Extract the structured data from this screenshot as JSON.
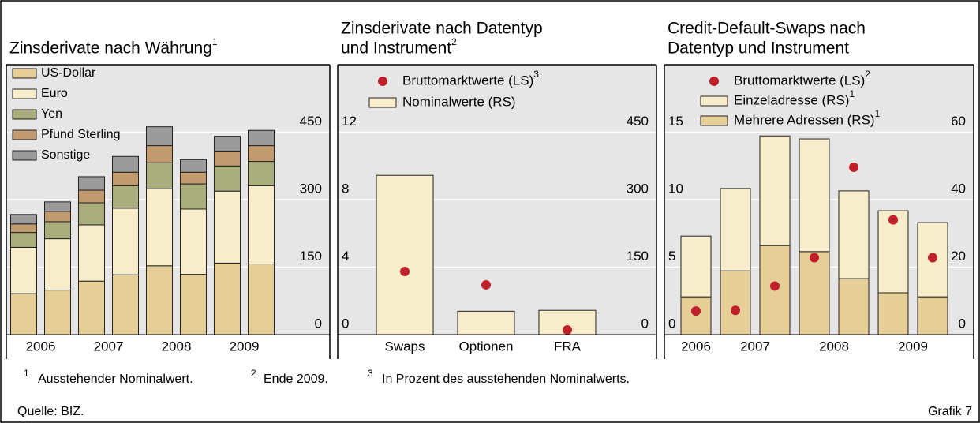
{
  "chart_data": [
    {
      "type": "bar",
      "stacked": true,
      "title": [
        "Zinsderivate nach Währung"
      ],
      "title_note": "1",
      "categories": [
        "2006",
        null,
        "2007",
        null,
        "2008",
        null,
        "2009",
        null
      ],
      "y_axis_position": "right",
      "ylim": [
        0,
        600
      ],
      "yticks": [
        0,
        150,
        300,
        450
      ],
      "grid": true,
      "series": [
        {
          "name": "US-Dollar",
          "color": "#e6cf97",
          "values": [
            91,
            99,
            119,
            133,
            153,
            134,
            159,
            157
          ]
        },
        {
          "name": "Euro",
          "color": "#f7edcb",
          "values": [
            103,
            114,
            125,
            148,
            171,
            145,
            160,
            174
          ]
        },
        {
          "name": "Yen",
          "color": "#a9ae7c",
          "values": [
            33,
            38,
            49,
            50,
            58,
            56,
            56,
            54
          ]
        },
        {
          "name": "Pfund Sterling",
          "color": "#c19b6d",
          "values": [
            19,
            23,
            28,
            30,
            38,
            26,
            33,
            35
          ]
        },
        {
          "name": "Sonstige",
          "color": "#9b9b9b",
          "values": [
            21,
            21,
            30,
            35,
            42,
            28,
            33,
            34
          ]
        }
      ]
    },
    {
      "type": "bar",
      "stacked": true,
      "title": [
        "Zinsderivate nach Datentyp",
        "und Instrument"
      ],
      "title_note": "2",
      "categories": [
        "Swaps",
        "Optionen",
        "FRA"
      ],
      "ylim": [
        0,
        16
      ],
      "yticks": [
        0,
        4,
        8,
        12
      ],
      "y2lim": [
        0,
        600
      ],
      "y2ticks": [
        0,
        150,
        300,
        450
      ],
      "grid": true,
      "series": [
        {
          "name": "Bruttomarktwerte (LS)",
          "note": "3",
          "kind": "dot",
          "color": "#c0202a",
          "values": [
            3.74,
            2.95,
            0.28
          ]
        },
        {
          "name": "Nominalwerte (RS)",
          "kind": "bar",
          "axis": "y2",
          "color": "#f7edcb",
          "values": [
            354,
            52,
            54
          ]
        }
      ]
    },
    {
      "type": "bar",
      "stacked": true,
      "title": [
        "Credit-Default-Swaps nach",
        "Datentyp und Instrument"
      ],
      "categories": [
        "2006",
        "2007",
        null,
        "2008",
        null,
        "2009",
        null
      ],
      "ylim": [
        0,
        20
      ],
      "yticks": [
        0,
        5,
        10,
        15
      ],
      "y2lim": [
        0,
        80
      ],
      "y2ticks": [
        0,
        20,
        40,
        60
      ],
      "grid": true,
      "series": [
        {
          "name": "Bruttomarktwerte (LS)",
          "note": "2",
          "kind": "dot",
          "color": "#c0202a",
          "values": [
            1.75,
            1.8,
            3.6,
            5.7,
            12.4,
            8.5,
            5.7
          ]
        },
        {
          "name": "Einzeladresse (RS)",
          "note": "1",
          "kind": "bar",
          "axis": "y2",
          "color": "#f7edcb",
          "values": [
            18.0,
            24.4,
            32.5,
            33.4,
            26.0,
            24.3,
            22.0
          ]
        },
        {
          "name": "Mehrere Adressen (RS)",
          "note": "1",
          "kind": "bar",
          "axis": "y2",
          "color": "#e6cf97",
          "values": [
            11.2,
            18.9,
            26.4,
            24.6,
            16.6,
            12.4,
            11.2
          ]
        }
      ]
    }
  ],
  "footnotes": [
    {
      "mark": "1",
      "text": "Ausstehender Nominalwert."
    },
    {
      "mark": "2",
      "text": "Ende 2009."
    },
    {
      "mark": "3",
      "text": "In Prozent des ausstehenden Nominalwerts."
    }
  ],
  "source": "Quelle: BIZ.",
  "figure_label": "Grafik 7"
}
